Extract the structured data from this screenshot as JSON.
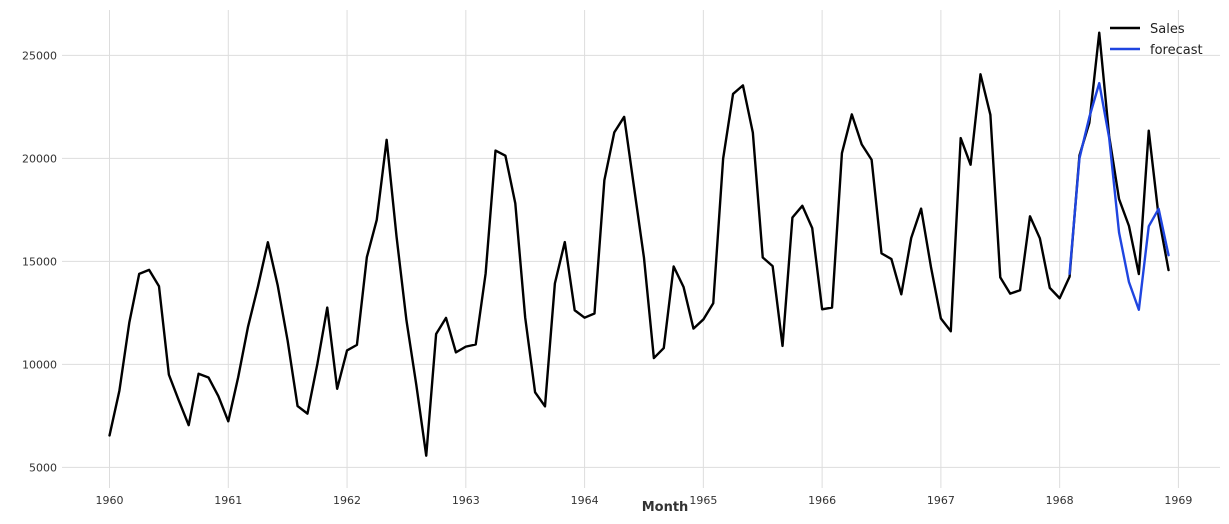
{
  "chart_data": {
    "type": "line",
    "xlabel": "Month",
    "ylabel": "",
    "title": "",
    "grid": true,
    "legend": "top-right",
    "x_unit": "year",
    "xlim": [
      1959.6,
      1969.35
    ],
    "ylim": [
      4000,
      27200
    ],
    "x_ticks": [
      1960,
      1961,
      1962,
      1963,
      1964,
      1965,
      1966,
      1967,
      1968,
      1969
    ],
    "x_tick_labels": [
      "1960",
      "1961",
      "1962",
      "1963",
      "1964",
      "1965",
      "1966",
      "1967",
      "1968",
      "1969"
    ],
    "y_ticks": [
      5000,
      10000,
      15000,
      20000,
      25000
    ],
    "y_tick_labels": [
      "5000",
      "10000",
      "15000",
      "20000",
      "25000"
    ],
    "series": [
      {
        "name": "Sales",
        "color": "#000000",
        "x_start": "1960-01",
        "frequency": "monthly",
        "values": [
          6550,
          8728,
          12026,
          14395,
          14587,
          13791,
          9498,
          8251,
          7049,
          9545,
          9364,
          8456,
          7237,
          9374,
          11837,
          13784,
          15926,
          13821,
          11143,
          7975,
          7610,
          10015,
          12759,
          8816,
          10677,
          10947,
          15200,
          17010,
          20900,
          16205,
          12143,
          8997,
          5568,
          11474,
          12256,
          10583,
          10862,
          10965,
          14405,
          20379,
          20128,
          17816,
          12268,
          8642,
          7962,
          13932,
          15936,
          12628,
          12267,
          12470,
          18944,
          21259,
          22015,
          18581,
          15175,
          10306,
          10792,
          14752,
          13754,
          11738,
          12181,
          12965,
          19990,
          23125,
          23541,
          21247,
          15189,
          14767,
          10895,
          17130,
          17697,
          16611,
          12674,
          12760,
          20249,
          22135,
          20677,
          19933,
          15388,
          15113,
          13401,
          16135,
          17562,
          14720,
          12225,
          11608,
          20985,
          19692,
          24081,
          22114,
          14220,
          13434,
          13598,
          17187,
          16119,
          13713,
          13210,
          14251,
          20139,
          21725,
          26099,
          21084,
          18024,
          16722,
          14385,
          21342,
          17180,
          14577
        ]
      },
      {
        "name": "forecast",
        "color": "#1f45e0",
        "x_start": "1968-02",
        "frequency": "monthly",
        "values": [
          14400,
          20000,
          22000,
          23650,
          21000,
          16400,
          14000,
          12650,
          16700,
          17550,
          15300
        ]
      }
    ]
  }
}
